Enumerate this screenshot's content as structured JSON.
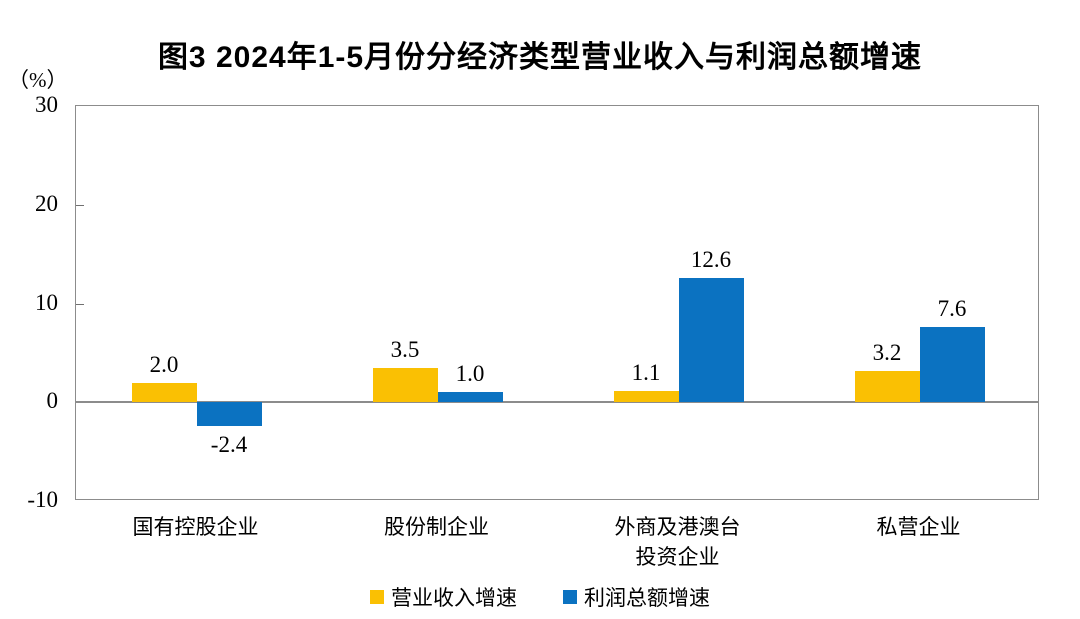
{
  "figure": {
    "title": "图3  2024年1-5月份分经济类型营业收入与利润总额增速",
    "unit_label": "（%）"
  },
  "chart_data": {
    "type": "bar",
    "title": "图3  2024年1-5月份分经济类型营业收入与利润总额增速",
    "unit_label": "（%）",
    "categories": [
      "国有控股企业",
      "股份制企业",
      "外商及港澳台\n投资企业",
      "私营企业"
    ],
    "series": [
      {
        "name": "营业收入增速",
        "color": "#FAC003",
        "values": [
          2.0,
          3.5,
          1.1,
          3.2
        ]
      },
      {
        "name": "利润总额增速",
        "color": "#0B72C1",
        "values": [
          -2.4,
          1.0,
          12.6,
          7.6
        ]
      }
    ],
    "ylim": [
      -10,
      30
    ],
    "yticks": [
      30,
      20,
      10,
      0,
      -10
    ],
    "grid": false,
    "legend_position": "bottom",
    "value_label_decimals": 1,
    "zero_line_color": "#8c8c8c",
    "border_color": "#8c8c8c"
  }
}
